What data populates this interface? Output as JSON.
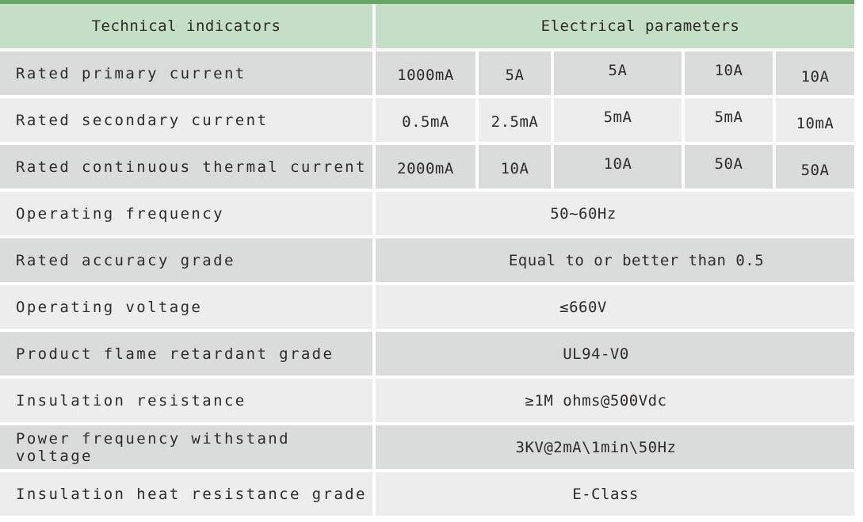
{
  "table": {
    "header": {
      "left": "Technical indicators",
      "right": "Electrical parameters"
    },
    "value_rows": [
      {
        "label": "Rated primary current",
        "values": [
          "1000mA",
          "5A",
          "5A",
          "10A",
          "10A"
        ]
      },
      {
        "label": "Rated secondary current",
        "values": [
          "0.5mA",
          "2.5mA",
          "5mA",
          "5mA",
          "10mA"
        ]
      },
      {
        "label": "Rated continuous thermal current",
        "values": [
          "2000mA",
          "10A",
          "10A",
          "50A",
          "50A"
        ]
      }
    ],
    "merged_rows": [
      {
        "label": "Operating frequency",
        "value": "50~60Hz"
      },
      {
        "label": "Rated accuracy grade",
        "value": "Equal to or better than 0.5"
      },
      {
        "label": "Operating voltage",
        "value": "≤660V"
      },
      {
        "label": "Product flame retardant grade",
        "value": "UL94-V0"
      },
      {
        "label": "Insulation resistance",
        "value": "≥1M ohms@500Vdc"
      },
      {
        "label": "Power frequency withstand voltage",
        "value": "3KV@2mA\\1min\\50Hz"
      },
      {
        "label": "Insulation heat resistance grade",
        "value": "E-Class"
      }
    ],
    "colors": {
      "top_border_green": "#67a567",
      "header_green": "#c5dfc6",
      "row_dark_gray": "#dadbdb",
      "row_light_gray": "#ededed",
      "text": "#2f2b28",
      "divider_white": "#ffffff"
    }
  }
}
